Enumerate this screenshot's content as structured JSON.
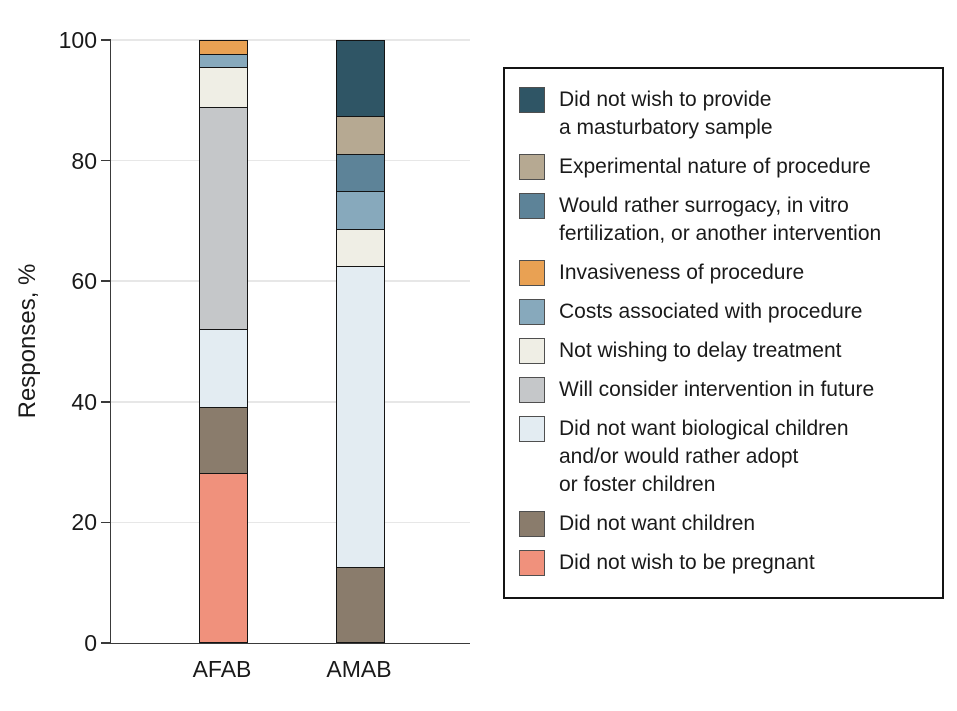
{
  "chart_data": {
    "type": "bar",
    "stacked": true,
    "title": "",
    "xlabel": "",
    "ylabel": "Responses, %",
    "ylim": [
      0,
      100
    ],
    "yticks": [
      0,
      20,
      40,
      60,
      80,
      100
    ],
    "grid": "horizontal",
    "legend_position": "right",
    "categories": [
      "AFAB",
      "AMAB"
    ],
    "series": [
      {
        "name": "Did not wish to be pregnant",
        "color": "#f0917c",
        "values": [
          28.2,
          0
        ]
      },
      {
        "name": "Did not want children",
        "color": "#8a7c6c",
        "values": [
          10.9,
          12.5
        ]
      },
      {
        "name": "Did not want biological children and/or would rather adopt or foster children",
        "color": "#e3ecf2",
        "values": [
          13.0,
          50.0
        ]
      },
      {
        "name": "Will consider intervention in future",
        "color": "#c5c7c9",
        "values": [
          37.0,
          0
        ]
      },
      {
        "name": "Not wishing to delay treatment",
        "color": "#efeee5",
        "values": [
          6.5,
          6.25
        ]
      },
      {
        "name": "Costs associated with procedure",
        "color": "#87a9bc",
        "values": [
          2.2,
          6.25
        ]
      },
      {
        "name": "Invasiveness of procedure",
        "color": "#e9a153",
        "values": [
          2.2,
          0
        ]
      },
      {
        "name": "Would rather surrogacy, in vitro fertilization, or another intervention",
        "color": "#5d8398",
        "values": [
          0,
          6.25
        ]
      },
      {
        "name": "Experimental nature of procedure",
        "color": "#b6a992",
        "values": [
          0,
          6.25
        ]
      },
      {
        "name": "Did not wish to provide a masturbatory sample",
        "color": "#2f5565",
        "values": [
          0,
          12.5
        ]
      }
    ]
  },
  "legend": {
    "items": [
      {
        "color": "#2f5565",
        "lines": [
          "Did not wish to provide",
          "a masturbatory sample"
        ]
      },
      {
        "color": "#b6a992",
        "lines": [
          "Experimental nature of procedure"
        ]
      },
      {
        "color": "#5d8398",
        "lines": [
          "Would rather surrogacy, in vitro",
          "fertilization, or another intervention"
        ]
      },
      {
        "color": "#e9a153",
        "lines": [
          "Invasiveness of procedure"
        ]
      },
      {
        "color": "#87a9bc",
        "lines": [
          "Costs associated with procedure"
        ]
      },
      {
        "color": "#efeee5",
        "lines": [
          "Not wishing to delay treatment"
        ]
      },
      {
        "color": "#c5c7c9",
        "lines": [
          "Will consider intervention in future"
        ]
      },
      {
        "color": "#e3ecf2",
        "lines": [
          "Did not want biological children",
          "and/or would rather adopt",
          "or foster children"
        ]
      },
      {
        "color": "#8a7c6c",
        "lines": [
          "Did not want children"
        ]
      },
      {
        "color": "#f0917c",
        "lines": [
          "Did not wish to be pregnant"
        ]
      }
    ]
  }
}
